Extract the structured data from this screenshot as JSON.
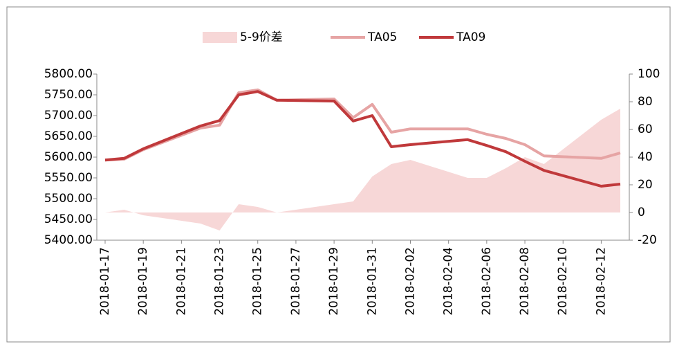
{
  "chart_data": {
    "type": "line",
    "x": [
      "2018-01-17",
      "2018-01-18",
      "2018-01-19",
      "2018-01-22",
      "2018-01-23",
      "2018-01-24",
      "2018-01-25",
      "2018-01-26",
      "2018-01-29",
      "2018-01-30",
      "2018-01-31",
      "2018-02-01",
      "2018-02-02",
      "2018-02-05",
      "2018-02-06",
      "2018-02-07",
      "2018-02-08",
      "2018-02-09",
      "2018-02-12",
      "2018-02-13"
    ],
    "series": [
      {
        "name": "5-9价差",
        "kind": "area",
        "axis": "y2",
        "color": "#f7d7d7",
        "values": [
          0,
          2,
          -2,
          -8,
          -13,
          6,
          4,
          0,
          6,
          8,
          26,
          35,
          38,
          25,
          25,
          32,
          40,
          35,
          67,
          75
        ]
      },
      {
        "name": "TA05",
        "color": "#e6a4a4",
        "values": [
          5593,
          5595,
          5618,
          5670,
          5677,
          5755,
          5762,
          5737,
          5740,
          5695,
          5727,
          5660,
          5668,
          5668,
          5655,
          5645,
          5630,
          5603,
          5597,
          5610
        ]
      },
      {
        "name": "TA09",
        "color": "#c0393b",
        "values": [
          5593,
          5597,
          5620,
          5675,
          5688,
          5750,
          5758,
          5737,
          5735,
          5687,
          5700,
          5625,
          5630,
          5642,
          5628,
          5613,
          5590,
          5568,
          5530,
          5535
        ]
      }
    ],
    "xlim": [
      "2018-01-17",
      "2018-02-13"
    ],
    "xticks": [
      "2018-01-17",
      "2018-01-19",
      "2018-01-21",
      "2018-01-23",
      "2018-01-25",
      "2018-01-27",
      "2018-01-29",
      "2018-01-31",
      "2018-02-02",
      "2018-02-04",
      "2018-02-06",
      "2018-02-08",
      "2018-02-10",
      "2018-02-12"
    ],
    "ylim": [
      5400,
      5800
    ],
    "yticks": [
      {
        "value": 5400,
        "label": "5400.00"
      },
      {
        "value": 5450,
        "label": "5450.00"
      },
      {
        "value": 5500,
        "label": "5500.00"
      },
      {
        "value": 5550,
        "label": "5550.00"
      },
      {
        "value": 5600,
        "label": "5600.00"
      },
      {
        "value": 5650,
        "label": "5650.00"
      },
      {
        "value": 5700,
        "label": "5700.00"
      },
      {
        "value": 5750,
        "label": "5750.00"
      },
      {
        "value": 5800,
        "label": "5800.00"
      }
    ],
    "y2lim": [
      -20,
      100
    ],
    "y2ticks": [
      -20,
      0,
      20,
      40,
      60,
      80,
      100
    ],
    "grid": true,
    "legend": "top"
  }
}
